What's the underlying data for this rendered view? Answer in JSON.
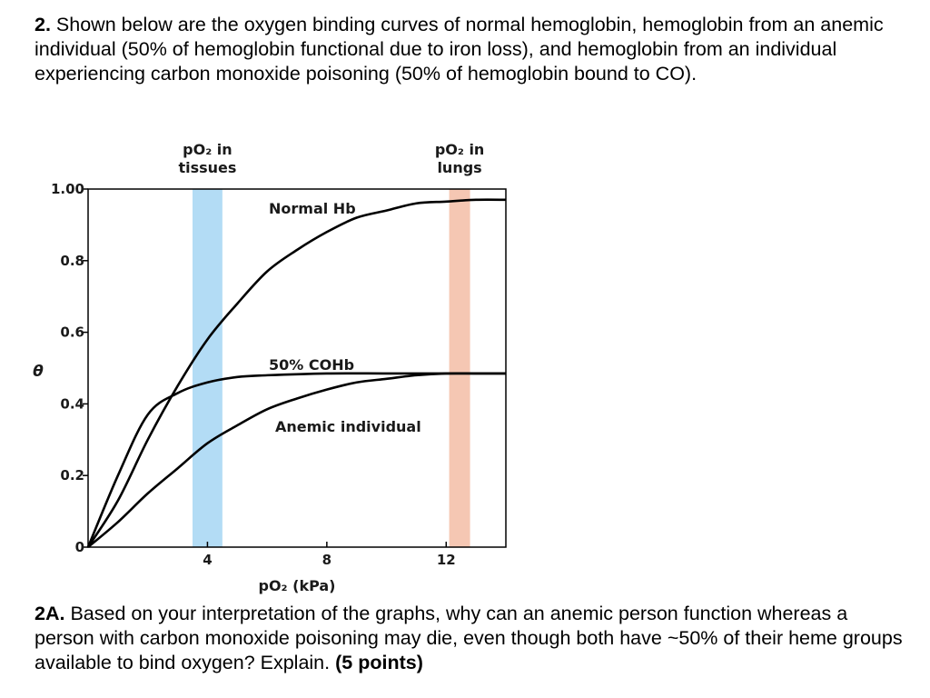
{
  "question": {
    "number": "2.",
    "text": "Shown below are the oxygen binding curves of normal hemoglobin, hemoglobin from an anemic individual (50% of hemoglobin functional due to iron loss), and hemoglobin from an individual experiencing carbon monoxide poisoning (50% of hemoglobin bound to CO)."
  },
  "sub_question": {
    "number": "2A.",
    "text": "Based on your interpretation of the graphs, why can an anemic person function whereas a person with carbon monoxide poisoning may die, even though both have ~50% of their heme groups available to bind oxygen? Explain.",
    "points": "(5 points)"
  },
  "chart_data": {
    "type": "line",
    "xlabel": "pO₂ (kPa)",
    "ylabel": "θ",
    "xlim": [
      0,
      14
    ],
    "ylim": [
      0,
      1.0
    ],
    "x_ticks": [
      4,
      8,
      12
    ],
    "x_tick_labels": [
      "4",
      "8",
      "12"
    ],
    "y_ticks": [
      0,
      0.2,
      0.4,
      0.6,
      0.8,
      1.0
    ],
    "y_tick_labels": [
      "0",
      "0.2",
      "0.4",
      "0.6",
      "0.8",
      "1.00"
    ],
    "grid": false,
    "bands": [
      {
        "label": "pO₂ in tissues",
        "x_start": 3.5,
        "x_end": 4.5,
        "color": "#b3dcf5"
      },
      {
        "label": "pO₂ in lungs",
        "x_start": 12.1,
        "x_end": 12.8,
        "color": "#f5c7b3"
      }
    ],
    "series": [
      {
        "name": "Normal Hb",
        "x": [
          0,
          1,
          2,
          3,
          4,
          5,
          6,
          7,
          8,
          9,
          10,
          11,
          12,
          13,
          14
        ],
        "y": [
          0,
          0.13,
          0.3,
          0.45,
          0.58,
          0.68,
          0.77,
          0.83,
          0.88,
          0.92,
          0.94,
          0.96,
          0.965,
          0.97,
          0.97
        ]
      },
      {
        "name": "50% COHb",
        "x": [
          0,
          1,
          2,
          3,
          4,
          5,
          6,
          8,
          10,
          12,
          14
        ],
        "y": [
          0,
          0.2,
          0.37,
          0.43,
          0.46,
          0.475,
          0.48,
          0.485,
          0.485,
          0.485,
          0.485
        ]
      },
      {
        "name": "Anemic individual",
        "x": [
          0,
          1,
          2,
          3,
          4,
          5,
          6,
          7,
          8,
          9,
          10,
          11,
          12,
          13,
          14
        ],
        "y": [
          0,
          0.07,
          0.15,
          0.22,
          0.29,
          0.34,
          0.385,
          0.415,
          0.44,
          0.46,
          0.47,
          0.48,
          0.485,
          0.485,
          0.485
        ]
      }
    ]
  }
}
